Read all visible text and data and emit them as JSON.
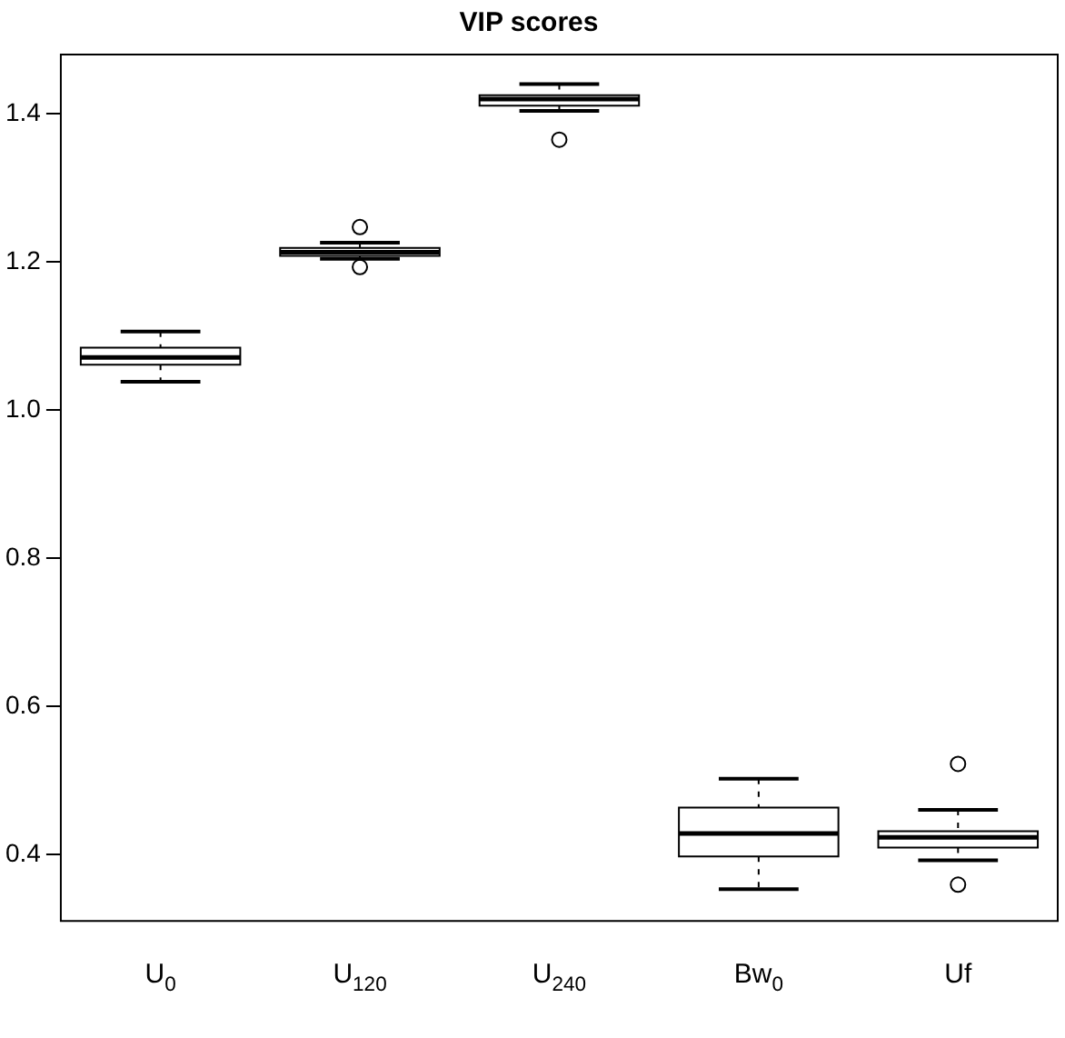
{
  "chart_data": {
    "type": "box",
    "title": "VIP scores",
    "categories": [
      "U$_{0}$",
      "U$_{120}$",
      "U$_{240}$",
      "Bw$_{0}$",
      "Uf"
    ],
    "boxes": [
      {
        "low": 1.038,
        "q1": 1.061,
        "median": 1.071,
        "q3": 1.084,
        "high": 1.106
      },
      {
        "low": 1.204,
        "q1": 1.208,
        "median": 1.213,
        "q3": 1.219,
        "high": 1.226,
        "outliers": [
          1.247,
          1.193
        ]
      },
      {
        "low": 1.404,
        "q1": 1.411,
        "median": 1.42,
        "q3": 1.425,
        "high": 1.44,
        "outliers": [
          1.365
        ]
      },
      {
        "low": 0.353,
        "q1": 0.397,
        "median": 0.428,
        "q3": 0.463,
        "high": 0.502
      },
      {
        "low": 0.392,
        "q1": 0.409,
        "median": 0.423,
        "q3": 0.431,
        "high": 0.46,
        "outliers": [
          0.522,
          0.359
        ]
      }
    ],
    "color": "#000000",
    "ylim": [
      0.31,
      1.48
    ],
    "yticks": [
      0.4,
      0.6,
      0.8,
      {
        "value": 1,
        "label": "1.0"
      },
      1.2,
      1.4
    ],
    "grid": false,
    "legend": false
  }
}
